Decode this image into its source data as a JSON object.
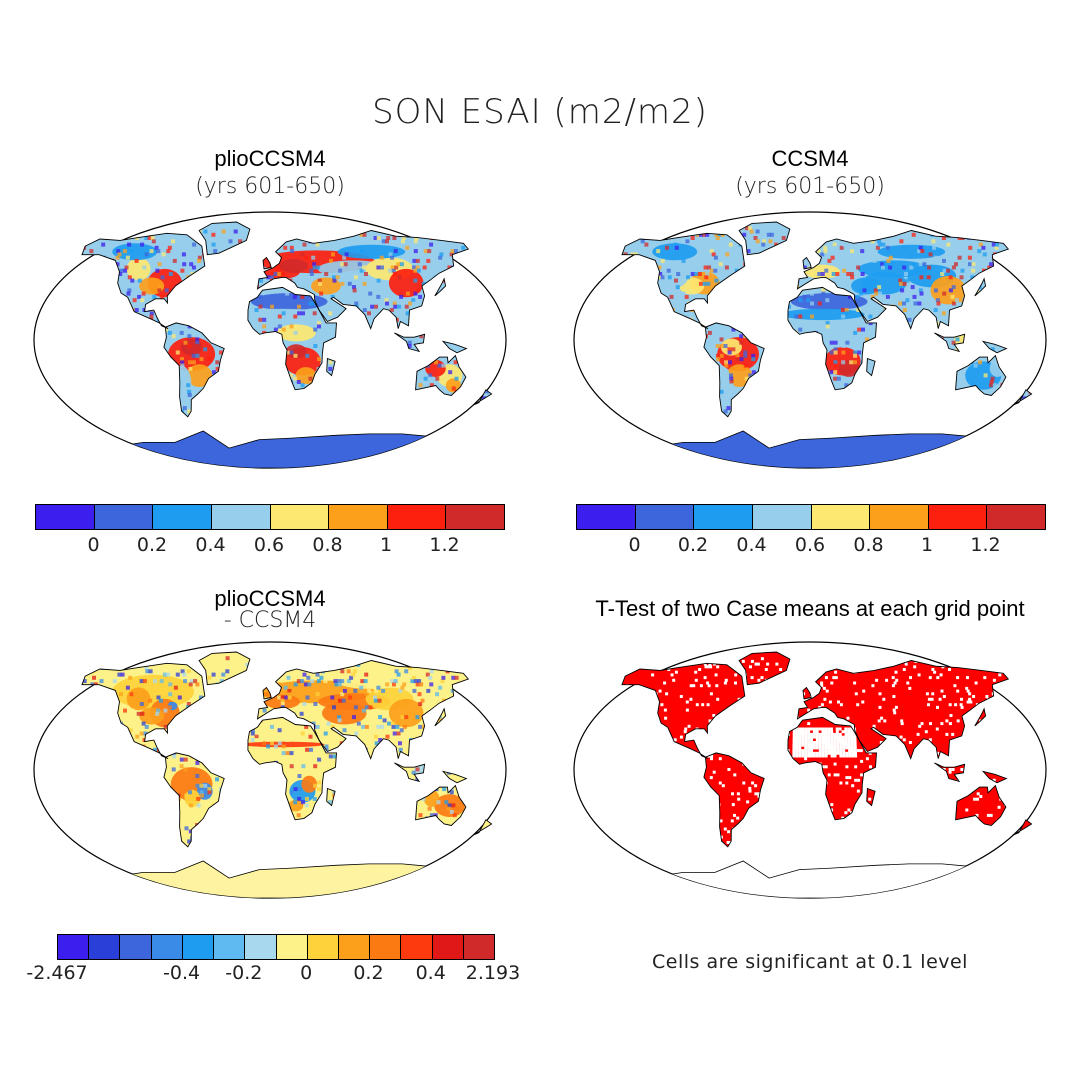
{
  "title": "SON ESAI (m2/m2)",
  "panels": [
    {
      "title": "plioCCSM4",
      "subtitle": "(yrs 601-650)",
      "palette": "abs",
      "pattern": "plio"
    },
    {
      "title": "CCSM4",
      "subtitle": "(yrs 601-650)",
      "palette": "abs",
      "pattern": "ccsm"
    },
    {
      "title": "plioCCSM4",
      "subtitle": "- CCSM4",
      "palette": "diff",
      "pattern": "diff"
    },
    {
      "title": "T-Test of two Case means at each grid point",
      "subtitle": "",
      "palette": "sig",
      "pattern": "sig"
    }
  ],
  "colorbars": {
    "abs": {
      "colors": [
        "#3c1eee",
        "#3d66dc",
        "#1e9cf0",
        "#96ceec",
        "#fde871",
        "#fca01b",
        "#fd200e",
        "#d12a2a"
      ],
      "ticks": [
        "0",
        "0.2",
        "0.4",
        "0.6",
        "0.8",
        "1",
        "1.2"
      ]
    },
    "diff": {
      "colors": [
        "#3c1eee",
        "#2a3ed8",
        "#3d66dc",
        "#3a8ae8",
        "#1e9cf0",
        "#5ebaf0",
        "#a8d8ee",
        "#fdf28a",
        "#fdd23a",
        "#fca01b",
        "#fc7a12",
        "#fd3a0e",
        "#e01818",
        "#d12a2a"
      ],
      "ticks": [
        "-2.467",
        "-0.4",
        "-0.2",
        "0",
        "0.2",
        "0.4",
        "2.193"
      ]
    }
  },
  "footnote": "Cells are significant at 0.1 level",
  "colors": {
    "significant": "#ff0000",
    "ocean": "#ffffff",
    "antarctica_abs": "#3d66dc",
    "antarctica_diff": "#fdf3a0"
  }
}
